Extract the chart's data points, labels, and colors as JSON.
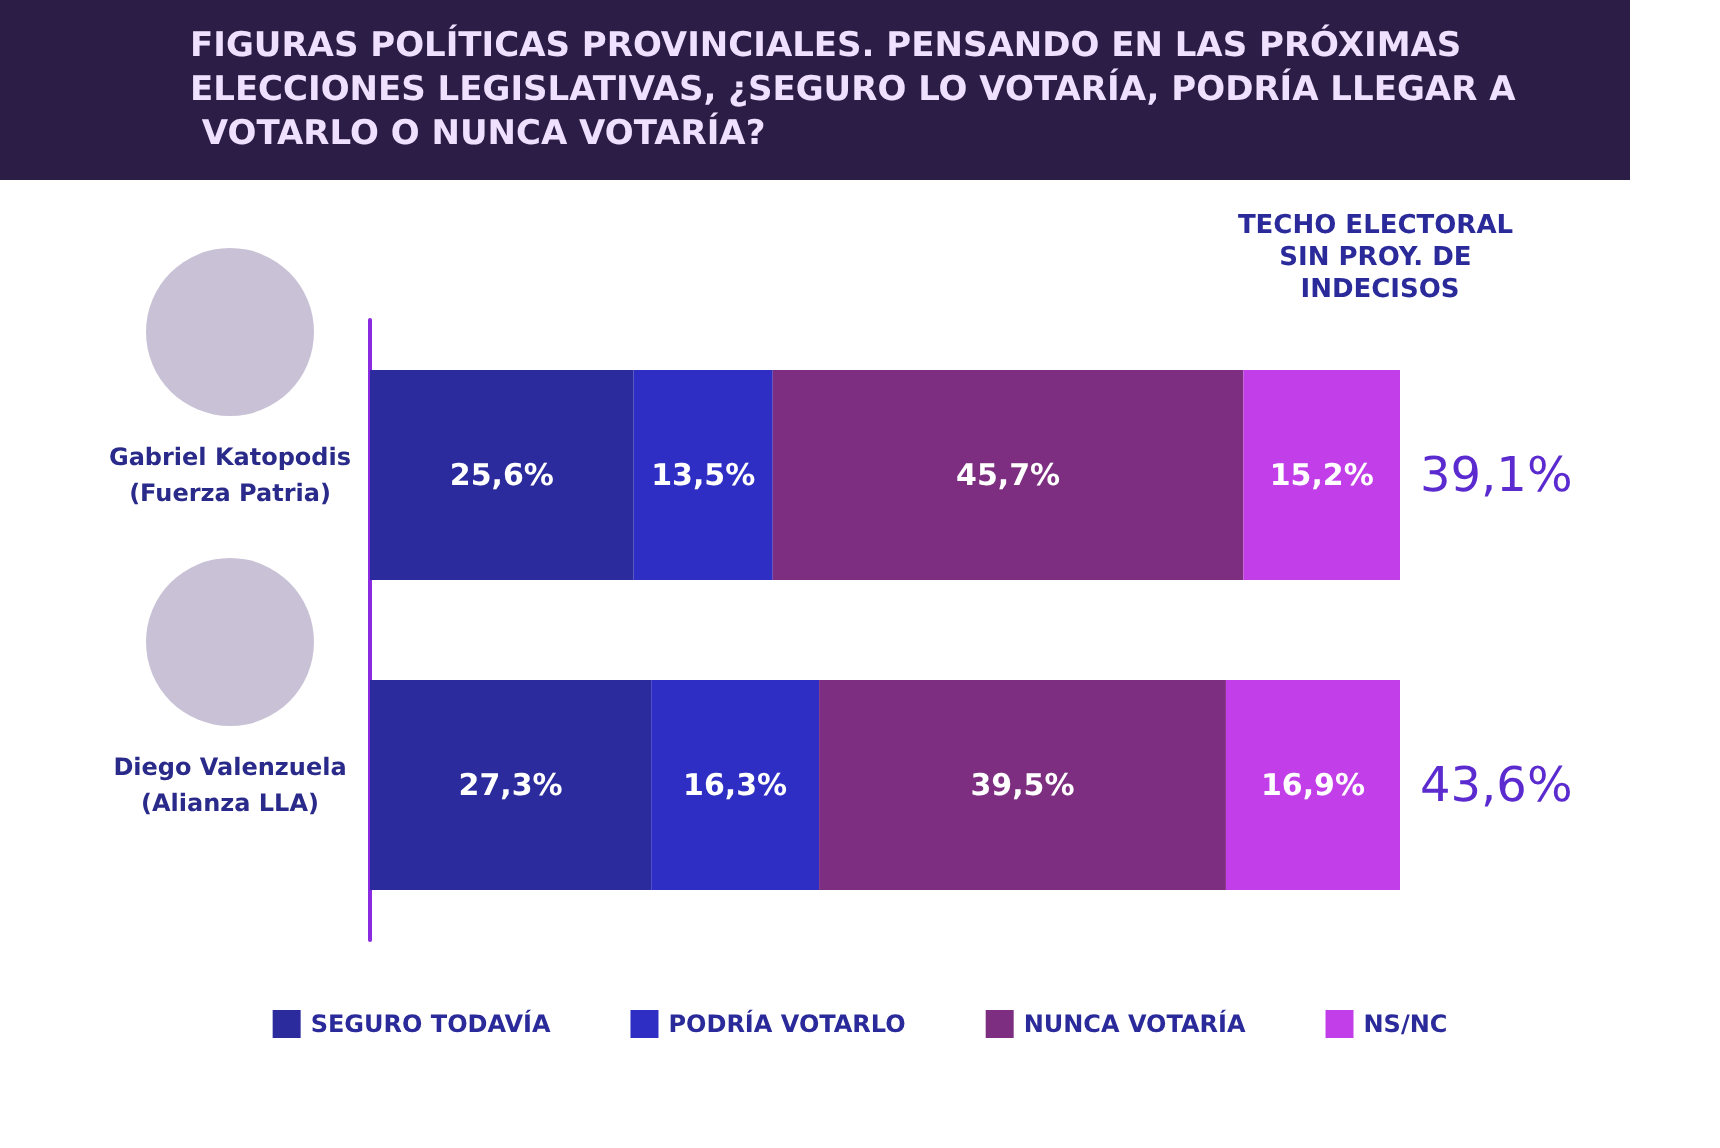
{
  "chart_data": {
    "type": "bar",
    "orientation": "horizontal",
    "stacked": true,
    "title": "FIGURAS POLÍTICAS PROVINCIALES. PENSANDO EN LAS PRÓXIMAS ELECCIONES LEGISLATIVAS, ¿SEGURO LO VOTARÍA, PODRÍA LLEGAR A VOTARLO O NUNCA VOTARÍA?",
    "categories": [
      "Gabriel Katopodis\n(Fuerza Patria)",
      "Diego Valenzuela\n(Alianza LLA)"
    ],
    "series": [
      {
        "name": "SEGURO TODAVÍA",
        "color": "#2b2b9e",
        "values": [
          25.6,
          27.3
        ],
        "value_labels": [
          "25,6%",
          "27,3%"
        ]
      },
      {
        "name": "PODRÍA VOTARLO",
        "color": "#2e2ec4",
        "values": [
          13.5,
          16.3
        ],
        "value_labels": [
          "13,5%",
          "16,3%"
        ]
      },
      {
        "name": "NUNCA VOTARÍA",
        "color": "#7d2e80",
        "values": [
          45.7,
          39.5
        ],
        "value_labels": [
          "45,7%",
          "39,5%"
        ]
      },
      {
        "name": "NS/NC",
        "color": "#c13ee8",
        "values": [
          15.2,
          16.9
        ],
        "value_labels": [
          "15,2%",
          "16,9%"
        ]
      }
    ],
    "xlim": [
      0,
      100
    ],
    "tick_labels": "y",
    "legend": "bottom",
    "annotations": [
      "TECHO ELECTORAL SIN PROY. DE INDECISOS",
      "39,1%",
      "43,6%"
    ]
  }
}
